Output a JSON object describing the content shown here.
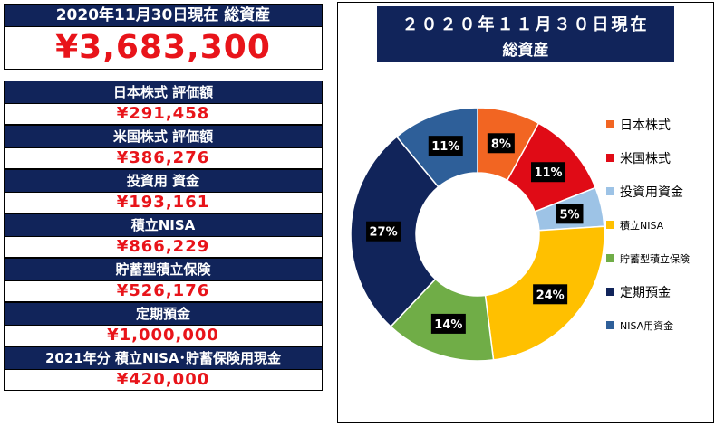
{
  "summary": {
    "total_label": "2020年11月30日現在 総資産",
    "total_value": "¥3,683,300"
  },
  "items": [
    {
      "label": "日本株式 評価額",
      "value": "¥291,458"
    },
    {
      "label": "米国株式 評価額",
      "value": "¥386,276"
    },
    {
      "label": "投資用 資金",
      "value": "¥193,161"
    },
    {
      "label": "積立NISA",
      "value": "¥866,229"
    },
    {
      "label": "貯蓄型積立保険",
      "value": "¥526,176"
    },
    {
      "label": "定期預金",
      "value": "¥1,000,000"
    },
    {
      "label": "2021年分 積立NISA･貯蓄保険用現金",
      "value": "¥420,000"
    }
  ],
  "chart_title": {
    "line1": "２０２０年１１月３０日現在",
    "line2": "総資産"
  },
  "chart_data": {
    "type": "pie",
    "donut": true,
    "title": "２０２０年１１月３０日現在 総資産",
    "legend_position": "right",
    "slices": [
      {
        "name": "日本株式",
        "percent": 8,
        "label": "8%",
        "color": "#f26522"
      },
      {
        "name": "米国株式",
        "percent": 11,
        "label": "11%",
        "color": "#e00b16"
      },
      {
        "name": "投資用資金",
        "percent": 5,
        "label": "5%",
        "color": "#9dc3e6"
      },
      {
        "name": "積立NISA",
        "percent": 24,
        "label": "24%",
        "color": "#ffc000"
      },
      {
        "name": "貯蓄型積立保険",
        "percent": 14,
        "label": "14%",
        "color": "#70ad47"
      },
      {
        "name": "定期預金",
        "percent": 27,
        "label": "27%",
        "color": "#11245a"
      },
      {
        "name": "NISA用資金",
        "percent": 11,
        "label": "11%",
        "color": "#2e5f99"
      }
    ]
  }
}
